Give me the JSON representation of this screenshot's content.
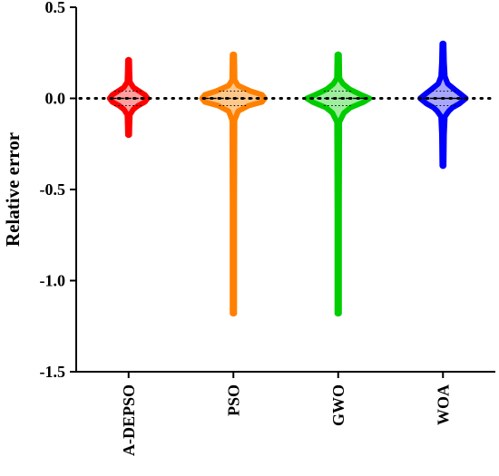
{
  "chart_data": {
    "type": "violin",
    "title": "",
    "xlabel": "",
    "ylabel": "Relative error",
    "ylim": [
      -1.5,
      0.5
    ],
    "yticks": [
      "0.5",
      "0.0",
      "-0.5",
      "-1.0",
      "-1.5"
    ],
    "ytick_values": [
      0.5,
      0.0,
      -0.5,
      -1.0,
      -1.5
    ],
    "reference_line": 0.0,
    "grid": false,
    "series": [
      {
        "name": "A-DEPSO",
        "color": "#ff0000",
        "fill": "#ff9f9f",
        "min": -0.2,
        "max": 0.21,
        "median": 0.0,
        "profile": [
          [
            -0.2,
            0.008
          ],
          [
            -0.15,
            0.01
          ],
          [
            -0.09,
            0.014
          ],
          [
            -0.06,
            0.05
          ],
          [
            -0.04,
            0.1
          ],
          [
            -0.02,
            0.17
          ],
          [
            0.0,
            0.2
          ],
          [
            0.02,
            0.17
          ],
          [
            0.04,
            0.11
          ],
          [
            0.06,
            0.05
          ],
          [
            0.09,
            0.014
          ],
          [
            0.15,
            0.01
          ],
          [
            0.21,
            0.008
          ]
        ]
      },
      {
        "name": "PSO",
        "color": "#ff8000",
        "fill": "#ffc88a",
        "min": -1.18,
        "max": 0.24,
        "median": 0.0,
        "profile": [
          [
            -1.18,
            0.01
          ],
          [
            -0.6,
            0.01
          ],
          [
            -0.12,
            0.013
          ],
          [
            -0.07,
            0.05
          ],
          [
            -0.04,
            0.16
          ],
          [
            -0.02,
            0.3
          ],
          [
            0.0,
            0.33
          ],
          [
            0.02,
            0.3
          ],
          [
            0.04,
            0.18
          ],
          [
            0.07,
            0.05
          ],
          [
            0.1,
            0.014
          ],
          [
            0.24,
            0.01
          ]
        ]
      },
      {
        "name": "GWO",
        "color": "#00cc00",
        "fill": "#9eee9e",
        "min": -1.18,
        "max": 0.24,
        "median": 0.0,
        "profile": [
          [
            -1.18,
            0.01
          ],
          [
            -0.6,
            0.01
          ],
          [
            -0.13,
            0.013
          ],
          [
            -0.08,
            0.06
          ],
          [
            -0.05,
            0.13
          ],
          [
            -0.02,
            0.27
          ],
          [
            0.0,
            0.33
          ],
          [
            0.02,
            0.24
          ],
          [
            0.05,
            0.12
          ],
          [
            0.08,
            0.05
          ],
          [
            0.11,
            0.014
          ],
          [
            0.24,
            0.01
          ]
        ]
      },
      {
        "name": "WOA",
        "color": "#0000ff",
        "fill": "#a6a6ff",
        "min": -0.37,
        "max": 0.3,
        "median": 0.0,
        "profile": [
          [
            -0.37,
            0.008
          ],
          [
            -0.2,
            0.012
          ],
          [
            -0.1,
            0.02
          ],
          [
            -0.07,
            0.06
          ],
          [
            -0.05,
            0.1
          ],
          [
            -0.03,
            0.17
          ],
          [
            0.0,
            0.24
          ],
          [
            0.03,
            0.17
          ],
          [
            0.05,
            0.12
          ],
          [
            0.08,
            0.05
          ],
          [
            0.12,
            0.02
          ],
          [
            0.2,
            0.012
          ],
          [
            0.3,
            0.008
          ]
        ]
      }
    ]
  }
}
